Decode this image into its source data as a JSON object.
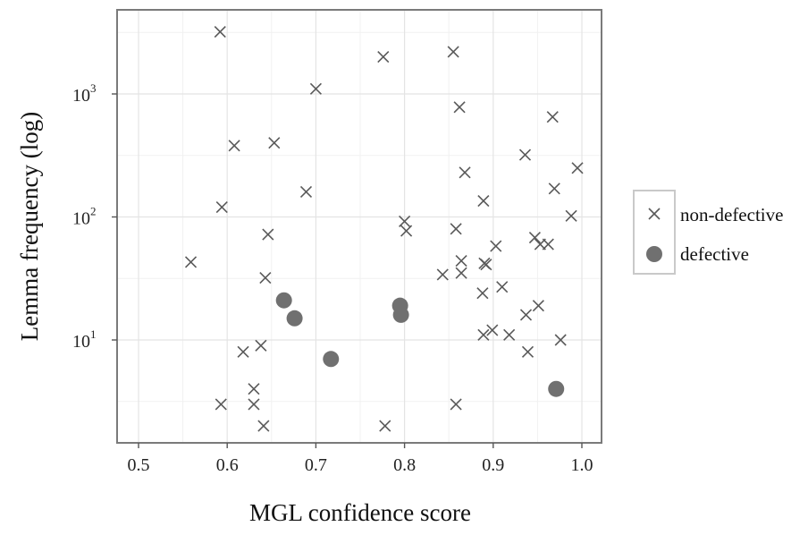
{
  "chart_data": {
    "type": "scatter",
    "title": "",
    "xlabel": "MGL confidence score",
    "ylabel": "Lemma frequency (log)",
    "xlim": [
      0.475,
      1.02
    ],
    "ylim": [
      1.6,
      4000
    ],
    "y_scale": "log",
    "grid": true,
    "legend_position": "right",
    "x_ticks": [
      {
        "value": 0.5,
        "label": "0.5"
      },
      {
        "value": 0.6,
        "label": "0.6"
      },
      {
        "value": 0.7,
        "label": "0.7"
      },
      {
        "value": 0.8,
        "label": "0.8"
      },
      {
        "value": 0.9,
        "label": "0.9"
      },
      {
        "value": 1.0,
        "label": "1.0"
      }
    ],
    "y_ticks": [
      {
        "value": 10,
        "base": "10",
        "exp": "1"
      },
      {
        "value": 100,
        "base": "10",
        "exp": "2"
      },
      {
        "value": 1000,
        "base": "10",
        "exp": "3"
      }
    ],
    "series": [
      {
        "name": "non-defective",
        "marker": "x",
        "color": "#595959",
        "points": [
          [
            0.592,
            3200
          ],
          [
            0.776,
            2000
          ],
          [
            0.855,
            2200
          ],
          [
            0.7,
            1100
          ],
          [
            0.862,
            780
          ],
          [
            0.967,
            650
          ],
          [
            0.608,
            380
          ],
          [
            0.653,
            400
          ],
          [
            0.936,
            320
          ],
          [
            0.995,
            250
          ],
          [
            0.868,
            230
          ],
          [
            0.969,
            170
          ],
          [
            0.689,
            160
          ],
          [
            0.889,
            135
          ],
          [
            0.594,
            120
          ],
          [
            0.988,
            102
          ],
          [
            0.8,
            92
          ],
          [
            0.858,
            80
          ],
          [
            0.802,
            77
          ],
          [
            0.646,
            72
          ],
          [
            0.947,
            68
          ],
          [
            0.962,
            60
          ],
          [
            0.953,
            60
          ],
          [
            0.903,
            58
          ],
          [
            0.559,
            43
          ],
          [
            0.864,
            44
          ],
          [
            0.89,
            42
          ],
          [
            0.892,
            41
          ],
          [
            0.843,
            34
          ],
          [
            0.864,
            35
          ],
          [
            0.643,
            32
          ],
          [
            0.91,
            27
          ],
          [
            0.888,
            24
          ],
          [
            0.951,
            19
          ],
          [
            0.937,
            16
          ],
          [
            0.899,
            12
          ],
          [
            0.889,
            11
          ],
          [
            0.918,
            11
          ],
          [
            0.976,
            10
          ],
          [
            0.638,
            9
          ],
          [
            0.618,
            8
          ],
          [
            0.939,
            8
          ],
          [
            0.63,
            4
          ],
          [
            0.593,
            3
          ],
          [
            0.63,
            3
          ],
          [
            0.858,
            3
          ],
          [
            0.641,
            2
          ],
          [
            0.778,
            2
          ]
        ]
      },
      {
        "name": "defective",
        "marker": "circle",
        "color": "#707070",
        "points": [
          [
            0.664,
            21
          ],
          [
            0.676,
            15
          ],
          [
            0.795,
            19
          ],
          [
            0.796,
            16
          ],
          [
            0.717,
            7
          ],
          [
            0.971,
            4
          ]
        ]
      }
    ]
  },
  "legend": {
    "items": [
      {
        "label": "non-defective"
      },
      {
        "label": "defective"
      }
    ]
  }
}
